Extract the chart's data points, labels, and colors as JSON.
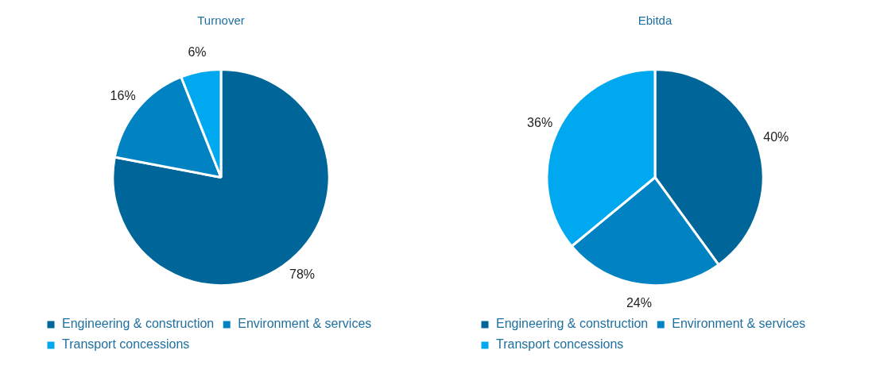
{
  "chart_data": [
    {
      "type": "pie",
      "title": "Turnover",
      "categories": [
        "Engineering & construction",
        "Environment & services",
        "Transport concessions"
      ],
      "values": [
        78,
        16,
        6
      ],
      "value_labels": [
        "78%",
        "16%",
        "6%"
      ],
      "colors": [
        "#006699",
        "#0082c3",
        "#00a8f0"
      ],
      "legend": "bottom"
    },
    {
      "type": "pie",
      "title": "Ebitda",
      "categories": [
        "Engineering & construction",
        "Environment & services",
        "Transport concessions"
      ],
      "values": [
        40,
        24,
        36
      ],
      "value_labels": [
        "40%",
        "24%",
        "36%"
      ],
      "colors": [
        "#006699",
        "#0082c3",
        "#00a8f0"
      ],
      "legend": "bottom"
    }
  ]
}
